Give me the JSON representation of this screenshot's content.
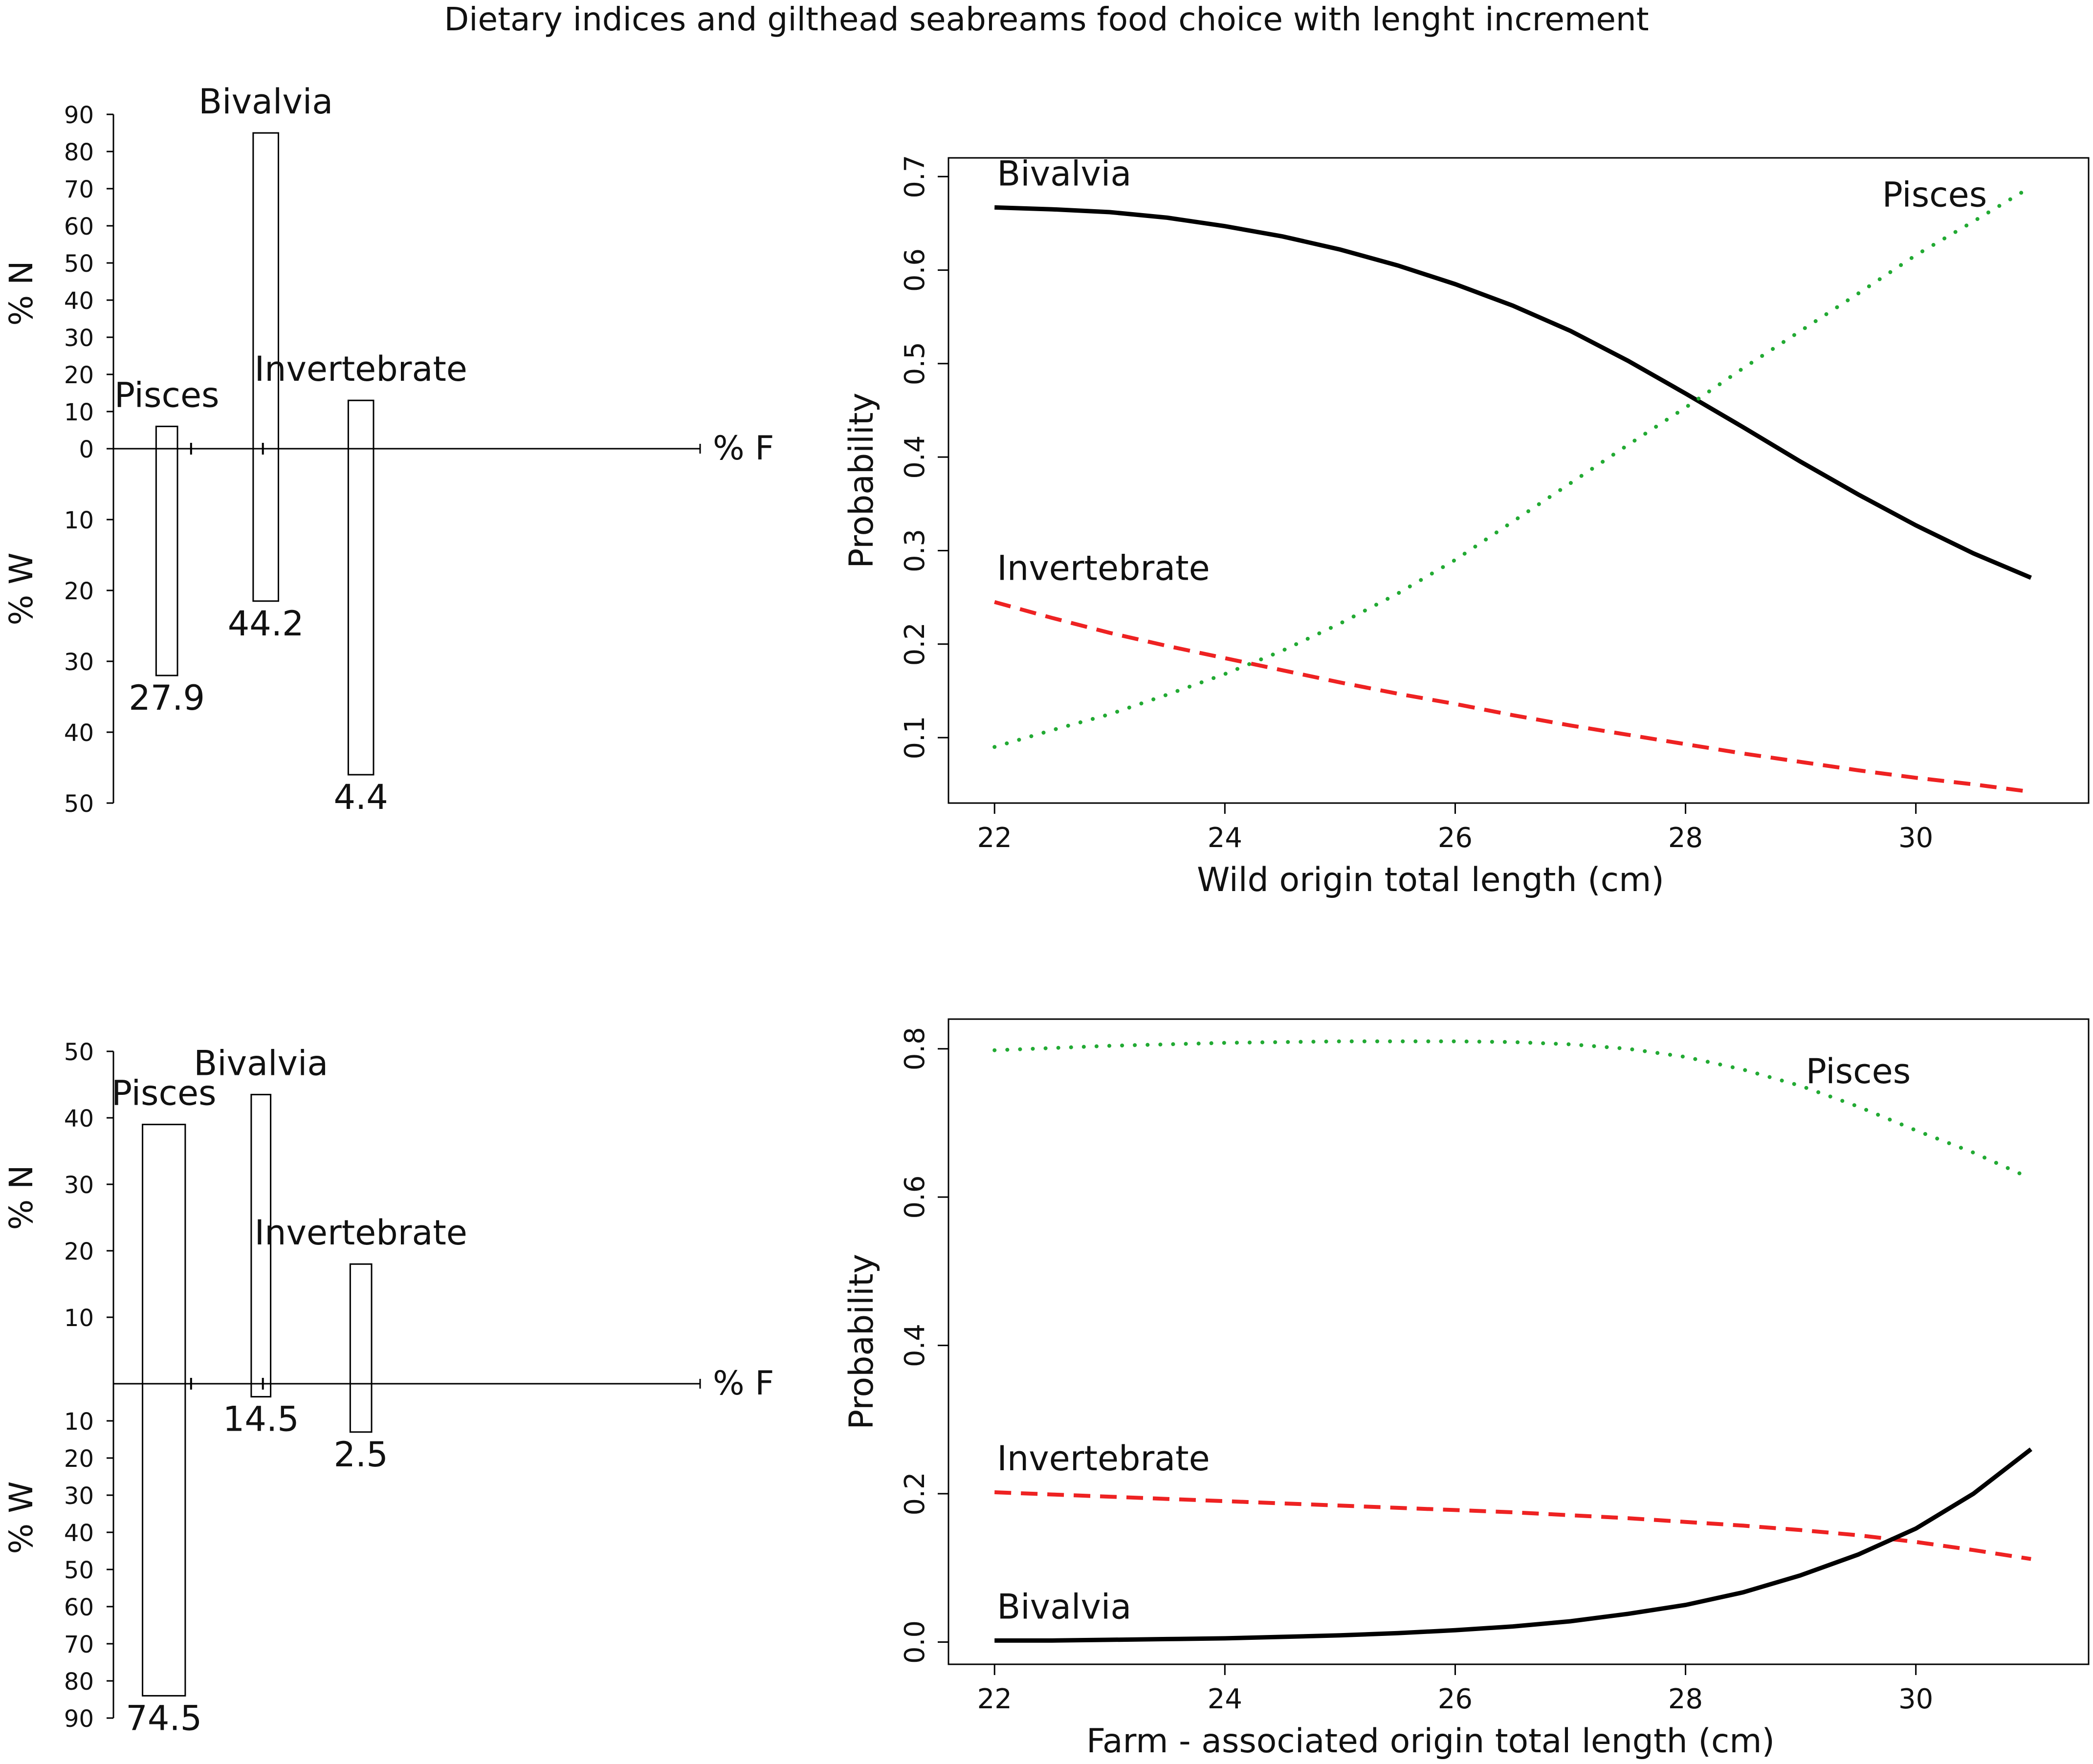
{
  "page_title": "Dietary indices and gilthead seabreams food choice with lenght increment",
  "chart_data": [
    {
      "id": "top-left",
      "type": "bar",
      "subtype": "diverging-rectangles",
      "xlabel": "% F",
      "ylabel_top": "% N",
      "ylabel_bottom": "% W",
      "top_axis": {
        "ticks": [
          0,
          10,
          20,
          30,
          40,
          50,
          60,
          70,
          80,
          90
        ]
      },
      "bottom_axis": {
        "ticks": [
          10,
          20,
          30,
          40,
          50
        ]
      },
      "categories": [
        "Pisces",
        "Bivalvia",
        "Invertebrate"
      ],
      "percent_N": [
        6,
        85,
        13
      ],
      "percent_W": [
        32,
        21.5,
        46
      ],
      "percent_F_range": [
        [
          22,
          33
        ],
        [
          72,
          85
        ],
        [
          121,
          134
        ]
      ],
      "labels": [
        "27.9",
        "44.2",
        "4.4"
      ]
    },
    {
      "id": "top-right",
      "type": "line",
      "title": "",
      "xlabel": "Wild origin total length (cm)",
      "ylabel": "Probability",
      "xlim": [
        21.6,
        31.5
      ],
      "ylim": [
        0.03,
        0.72
      ],
      "xticks": [
        22,
        24,
        26,
        28,
        30
      ],
      "yticks": [
        0.1,
        0.2,
        0.3,
        0.4,
        0.5,
        0.6,
        0.7
      ],
      "x": [
        22,
        22.5,
        23,
        23.5,
        24,
        24.5,
        25,
        25.5,
        26,
        26.5,
        27,
        27.5,
        28,
        28.5,
        29,
        29.5,
        30,
        30.5,
        31
      ],
      "series": [
        {
          "name": "Bivalvia",
          "style": "solid",
          "color": "#000000",
          "values": [
            0.667,
            0.665,
            0.662,
            0.656,
            0.647,
            0.636,
            0.622,
            0.605,
            0.585,
            0.562,
            0.535,
            0.503,
            0.468,
            0.432,
            0.395,
            0.36,
            0.327,
            0.297,
            0.271
          ]
        },
        {
          "name": "Pisces",
          "style": "dotted",
          "color": "#22aa33",
          "values": [
            0.09,
            0.108,
            0.125,
            0.146,
            0.168,
            0.193,
            0.222,
            0.254,
            0.29,
            0.331,
            0.372,
            0.413,
            0.453,
            0.495,
            0.535,
            0.575,
            0.616,
            0.652,
            0.689
          ]
        },
        {
          "name": "Invertebrate",
          "style": "dashed",
          "color": "#ee2222",
          "values": [
            0.245,
            0.228,
            0.212,
            0.198,
            0.185,
            0.172,
            0.159,
            0.147,
            0.136,
            0.124,
            0.113,
            0.103,
            0.093,
            0.083,
            0.074,
            0.065,
            0.057,
            0.05,
            0.042
          ]
        }
      ]
    },
    {
      "id": "bottom-left",
      "type": "bar",
      "subtype": "diverging-rectangles",
      "xlabel": "% F",
      "ylabel_top": "% N",
      "ylabel_bottom": "% W",
      "top_axis": {
        "ticks": [
          10,
          20,
          30,
          40,
          50
        ]
      },
      "bottom_axis": {
        "ticks": [
          10,
          20,
          30,
          40,
          50,
          60,
          70,
          80,
          90
        ]
      },
      "categories": [
        "Pisces",
        "Bivalvia",
        "Invertebrate"
      ],
      "percent_N": [
        39,
        43.5,
        18
      ],
      "percent_W": [
        84,
        3.5,
        13
      ],
      "percent_F_range": [
        [
          15,
          37
        ],
        [
          71,
          81
        ],
        [
          122,
          133
        ]
      ],
      "labels": [
        "74.5",
        "14.5",
        "2.5"
      ]
    },
    {
      "id": "bottom-right",
      "type": "line",
      "title": "",
      "xlabel": "Farm - associated origin total length (cm)",
      "ylabel": "Probability",
      "xlim": [
        21.6,
        31.5
      ],
      "ylim": [
        -0.03,
        0.84
      ],
      "xticks": [
        22,
        24,
        26,
        28,
        30
      ],
      "yticks": [
        0.0,
        0.2,
        0.4,
        0.6,
        0.8
      ],
      "ytick_labels": [
        "0.0",
        "0.2",
        "0.4",
        "0.6",
        "0.8"
      ],
      "x": [
        22,
        22.5,
        23,
        23.5,
        24,
        24.5,
        25,
        25.5,
        26,
        26.5,
        27,
        27.5,
        28,
        28.5,
        29,
        29.5,
        30,
        30.5,
        31
      ],
      "series": [
        {
          "name": "Pisces",
          "style": "dotted",
          "color": "#22aa33",
          "values": [
            0.798,
            0.801,
            0.804,
            0.806,
            0.808,
            0.809,
            0.81,
            0.81,
            0.81,
            0.809,
            0.806,
            0.8,
            0.789,
            0.772,
            0.75,
            0.722,
            0.69,
            0.66,
            0.625
          ]
        },
        {
          "name": "Invertebrate",
          "style": "dashed",
          "color": "#ee2222",
          "values": [
            0.202,
            0.199,
            0.196,
            0.193,
            0.19,
            0.187,
            0.184,
            0.181,
            0.178,
            0.175,
            0.171,
            0.167,
            0.162,
            0.157,
            0.151,
            0.144,
            0.135,
            0.124,
            0.112
          ]
        },
        {
          "name": "Bivalvia",
          "style": "solid",
          "color": "#000000",
          "values": [
            0.002,
            0.002,
            0.003,
            0.004,
            0.005,
            0.007,
            0.009,
            0.012,
            0.016,
            0.021,
            0.028,
            0.038,
            0.05,
            0.067,
            0.09,
            0.118,
            0.153,
            0.2,
            0.26
          ]
        }
      ]
    }
  ]
}
